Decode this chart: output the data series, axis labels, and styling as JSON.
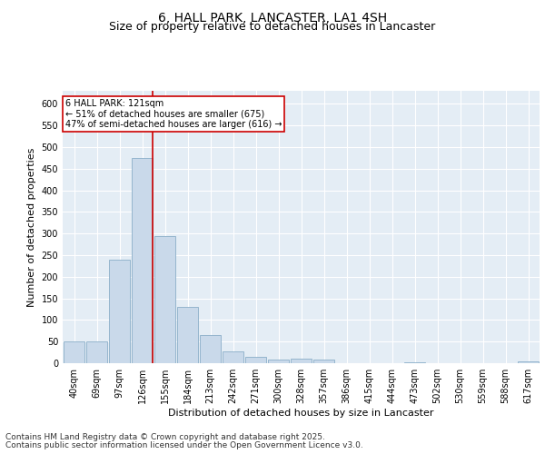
{
  "title1": "6, HALL PARK, LANCASTER, LA1 4SH",
  "title2": "Size of property relative to detached houses in Lancaster",
  "xlabel": "Distribution of detached houses by size in Lancaster",
  "ylabel": "Number of detached properties",
  "categories": [
    "40sqm",
    "69sqm",
    "97sqm",
    "126sqm",
    "155sqm",
    "184sqm",
    "213sqm",
    "242sqm",
    "271sqm",
    "300sqm",
    "328sqm",
    "357sqm",
    "386sqm",
    "415sqm",
    "444sqm",
    "473sqm",
    "502sqm",
    "530sqm",
    "559sqm",
    "588sqm",
    "617sqm"
  ],
  "values": [
    50,
    50,
    240,
    475,
    295,
    130,
    65,
    28,
    15,
    8,
    10,
    8,
    0,
    0,
    0,
    3,
    0,
    0,
    0,
    0,
    5
  ],
  "bar_color": "#c9d9ea",
  "bar_edge_color": "#8aaec8",
  "background_color": "#e4edf5",
  "vline_x": 3.45,
  "vline_color": "#cc0000",
  "annotation_text": "6 HALL PARK: 121sqm\n← 51% of detached houses are smaller (675)\n47% of semi-detached houses are larger (616) →",
  "annotation_box_color": "#ffffff",
  "annotation_box_edge": "#cc0000",
  "ylim": [
    0,
    630
  ],
  "yticks": [
    0,
    50,
    100,
    150,
    200,
    250,
    300,
    350,
    400,
    450,
    500,
    550,
    600
  ],
  "footer1": "Contains HM Land Registry data © Crown copyright and database right 2025.",
  "footer2": "Contains public sector information licensed under the Open Government Licence v3.0.",
  "title_fontsize": 10,
  "subtitle_fontsize": 9,
  "axis_label_fontsize": 8,
  "tick_fontsize": 7,
  "annotation_fontsize": 7,
  "footer_fontsize": 6.5
}
